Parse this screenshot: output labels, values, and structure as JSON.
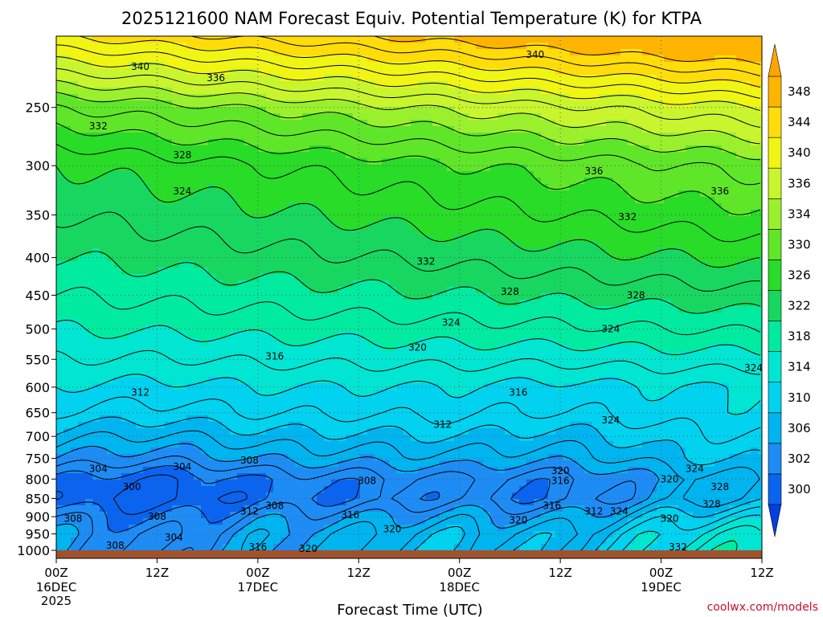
{
  "chart_data": {
    "type": "heatmap",
    "title": "2025121600 NAM Forecast Equiv. Potential Temperature (K) for KTPA",
    "xlabel": "Forecast Time (UTC)",
    "ylabel": "",
    "x_hours_range": [
      0,
      84
    ],
    "y_range_hpa": [
      1000,
      200
    ],
    "y_scale": "log",
    "grid": true,
    "x_ticks": [
      {
        "hour": 0,
        "label": "00Z",
        "date": "16DEC",
        "year": "2025"
      },
      {
        "hour": 12,
        "label": "12Z"
      },
      {
        "hour": 24,
        "label": "00Z",
        "date": "17DEC"
      },
      {
        "hour": 36,
        "label": "12Z"
      },
      {
        "hour": 48,
        "label": "00Z",
        "date": "18DEC"
      },
      {
        "hour": 60,
        "label": "12Z"
      },
      {
        "hour": 72,
        "label": "00Z",
        "date": "19DEC"
      },
      {
        "hour": 84,
        "label": "12Z"
      }
    ],
    "y_ticks": [
      250,
      300,
      350,
      400,
      450,
      500,
      550,
      600,
      650,
      700,
      750,
      800,
      850,
      900,
      950,
      1000
    ],
    "colorbar": {
      "levels": [
        300,
        302,
        306,
        310,
        314,
        318,
        322,
        326,
        330,
        334,
        336,
        340,
        344,
        348
      ],
      "colors": [
        "#0a64f0",
        "#1e8cf5",
        "#00b4f0",
        "#00d2f0",
        "#00e6d2",
        "#00eba0",
        "#18d760",
        "#28dc28",
        "#60e628",
        "#9bf02d",
        "#c8f52d",
        "#f0f514",
        "#ffdc0a",
        "#ffb400"
      ]
    },
    "profile_t0": [
      {
        "p": 1000,
        "theta_e": 306
      },
      {
        "p": 950,
        "theta_e": 306
      },
      {
        "p": 900,
        "theta_e": 304
      },
      {
        "p": 850,
        "theta_e": 301
      },
      {
        "p": 800,
        "theta_e": 302
      },
      {
        "p": 750,
        "theta_e": 306
      },
      {
        "p": 700,
        "theta_e": 309
      },
      {
        "p": 650,
        "theta_e": 312
      },
      {
        "p": 600,
        "theta_e": 314
      },
      {
        "p": 550,
        "theta_e": 316
      },
      {
        "p": 500,
        "theta_e": 318
      },
      {
        "p": 450,
        "theta_e": 320
      },
      {
        "p": 400,
        "theta_e": 322
      },
      {
        "p": 350,
        "theta_e": 324
      },
      {
        "p": 300,
        "theta_e": 326
      },
      {
        "p": 250,
        "theta_e": 332
      },
      {
        "p": 200,
        "theta_e": 344
      }
    ],
    "contour_labels": [
      {
        "text": "340",
        "hour": 10,
        "p": 220
      },
      {
        "text": "340",
        "hour": 57,
        "p": 212
      },
      {
        "text": "336",
        "hour": 19,
        "p": 228
      },
      {
        "text": "336",
        "hour": 64,
        "p": 305
      },
      {
        "text": "336",
        "hour": 79,
        "p": 325
      },
      {
        "text": "332",
        "hour": 5,
        "p": 265
      },
      {
        "text": "332",
        "hour": 68,
        "p": 352
      },
      {
        "text": "332",
        "hour": 44,
        "p": 405
      },
      {
        "text": "332",
        "hour": 74,
        "p": 990
      },
      {
        "text": "328",
        "hour": 15,
        "p": 290
      },
      {
        "text": "328",
        "hour": 54,
        "p": 445
      },
      {
        "text": "328",
        "hour": 69,
        "p": 450
      },
      {
        "text": "328",
        "hour": 79,
        "p": 820
      },
      {
        "text": "328",
        "hour": 78,
        "p": 865
      },
      {
        "text": "324",
        "hour": 15,
        "p": 325
      },
      {
        "text": "324",
        "hour": 47,
        "p": 490
      },
      {
        "text": "324",
        "hour": 66,
        "p": 500
      },
      {
        "text": "324",
        "hour": 83,
        "p": 565
      },
      {
        "text": "324",
        "hour": 66,
        "p": 665
      },
      {
        "text": "324",
        "hour": 76,
        "p": 775
      },
      {
        "text": "324",
        "hour": 67,
        "p": 885
      },
      {
        "text": "320",
        "hour": 43,
        "p": 530
      },
      {
        "text": "320",
        "hour": 60,
        "p": 780
      },
      {
        "text": "320",
        "hour": 73,
        "p": 800
      },
      {
        "text": "320",
        "hour": 55,
        "p": 910
      },
      {
        "text": "320",
        "hour": 40,
        "p": 935
      },
      {
        "text": "320",
        "hour": 73,
        "p": 905
      },
      {
        "text": "320",
        "hour": 30,
        "p": 995
      },
      {
        "text": "316",
        "hour": 26,
        "p": 545
      },
      {
        "text": "316",
        "hour": 55,
        "p": 610
      },
      {
        "text": "316",
        "hour": 60,
        "p": 805
      },
      {
        "text": "316",
        "hour": 59,
        "p": 870
      },
      {
        "text": "316",
        "hour": 35,
        "p": 895
      },
      {
        "text": "316",
        "hour": 24,
        "p": 990
      },
      {
        "text": "312",
        "hour": 10,
        "p": 610
      },
      {
        "text": "312",
        "hour": 46,
        "p": 675
      },
      {
        "text": "312",
        "hour": 23,
        "p": 885
      },
      {
        "text": "312",
        "hour": 64,
        "p": 885
      },
      {
        "text": "308",
        "hour": 23,
        "p": 755
      },
      {
        "text": "308",
        "hour": 37,
        "p": 805
      },
      {
        "text": "308",
        "hour": 26,
        "p": 870
      },
      {
        "text": "308",
        "hour": 2,
        "p": 905
      },
      {
        "text": "308",
        "hour": 12,
        "p": 900
      },
      {
        "text": "308",
        "hour": 7,
        "p": 985
      },
      {
        "text": "304",
        "hour": 5,
        "p": 775
      },
      {
        "text": "304",
        "hour": 15,
        "p": 770
      },
      {
        "text": "304",
        "hour": 14,
        "p": 960
      },
      {
        "text": "300",
        "hour": 9,
        "p": 820
      }
    ]
  },
  "credit": "coolwx.com/models"
}
